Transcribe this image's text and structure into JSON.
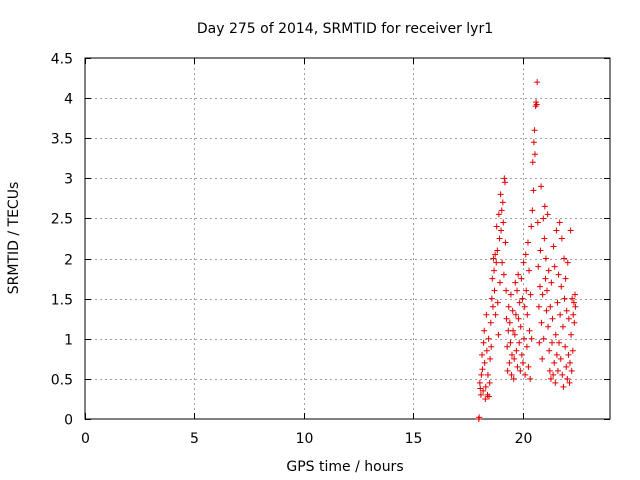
{
  "chart_data": {
    "type": "scatter",
    "title": "Day 275 of 2014, SRMTID for receiver lyr1",
    "xlabel": "GPS time / hours",
    "ylabel": "SRMTID / TECUs",
    "xlim": [
      0,
      24
    ],
    "ylim": [
      0,
      4.5
    ],
    "xticks": [
      0,
      5,
      10,
      15,
      20
    ],
    "xtick_labels": [
      "0",
      "5",
      "10",
      "15",
      "20"
    ],
    "yticks": [
      0,
      0.5,
      1,
      1.5,
      2,
      2.5,
      3,
      3.5,
      4,
      4.5
    ],
    "ytick_labels": [
      "0",
      "0.5",
      "1",
      "1.5",
      "2",
      "2.5",
      "3",
      "3.5",
      "4",
      "4.5"
    ],
    "grid": true,
    "marker": "+",
    "color": "#e00000",
    "series": [
      {
        "name": "SRMTID",
        "points": [
          [
            18.0,
            0.0
          ],
          [
            18.02,
            0.02
          ],
          [
            18.05,
            0.45
          ],
          [
            18.07,
            0.38
          ],
          [
            18.1,
            0.3
          ],
          [
            18.12,
            0.55
          ],
          [
            18.15,
            0.8
          ],
          [
            18.17,
            0.62
          ],
          [
            18.2,
            0.35
          ],
          [
            18.22,
            0.95
          ],
          [
            18.25,
            1.1
          ],
          [
            18.27,
            0.7
          ],
          [
            18.3,
            0.25
          ],
          [
            18.32,
            0.4
          ],
          [
            18.35,
            1.3
          ],
          [
            18.37,
            0.85
          ],
          [
            18.4,
            0.3
          ],
          [
            18.42,
            0.55
          ],
          [
            18.45,
            1.0
          ],
          [
            18.47,
            0.28
          ],
          [
            18.5,
            0.45
          ],
          [
            18.52,
            0.75
          ],
          [
            18.55,
            1.2
          ],
          [
            18.57,
            0.9
          ],
          [
            18.6,
            1.5
          ],
          [
            18.62,
            1.75
          ],
          [
            18.65,
            1.4
          ],
          [
            18.67,
            2.0
          ],
          [
            18.7,
            1.85
          ],
          [
            18.72,
            1.6
          ],
          [
            18.75,
            2.05
          ],
          [
            18.77,
            1.3
          ],
          [
            18.8,
            1.95
          ],
          [
            18.82,
            2.4
          ],
          [
            18.85,
            2.1
          ],
          [
            18.87,
            1.45
          ],
          [
            18.9,
            1.05
          ],
          [
            18.92,
            2.55
          ],
          [
            18.95,
            2.25
          ],
          [
            18.97,
            1.7
          ],
          [
            19.0,
            2.8
          ],
          [
            19.02,
            2.35
          ],
          [
            19.05,
            2.6
          ],
          [
            19.07,
            1.95
          ],
          [
            19.1,
            2.7
          ],
          [
            19.12,
            2.45
          ],
          [
            19.15,
            1.8
          ],
          [
            19.17,
            3.0
          ],
          [
            19.2,
            2.95
          ],
          [
            19.22,
            2.2
          ],
          [
            19.25,
            1.6
          ],
          [
            19.27,
            1.25
          ],
          [
            19.3,
            0.9
          ],
          [
            19.32,
            0.6
          ],
          [
            19.35,
            1.1
          ],
          [
            19.37,
            1.4
          ],
          [
            19.4,
            0.7
          ],
          [
            19.42,
            1.2
          ],
          [
            19.45,
            0.95
          ],
          [
            19.47,
            1.55
          ],
          [
            19.5,
            0.55
          ],
          [
            19.52,
            0.8
          ],
          [
            19.55,
            1.35
          ],
          [
            19.57,
            1.1
          ],
          [
            19.6,
            0.5
          ],
          [
            19.62,
            0.75
          ],
          [
            19.65,
            1.05
          ],
          [
            19.67,
            1.7
          ],
          [
            19.7,
            1.3
          ],
          [
            19.72,
            0.85
          ],
          [
            19.75,
            1.6
          ],
          [
            19.77,
            0.65
          ],
          [
            19.8,
            1.8
          ],
          [
            19.82,
            1.25
          ],
          [
            19.85,
            0.95
          ],
          [
            19.87,
            1.45
          ],
          [
            19.9,
            0.6
          ],
          [
            19.92,
            1.15
          ],
          [
            19.95,
            1.75
          ],
          [
            19.97,
            0.8
          ],
          [
            20.0,
            1.5
          ],
          [
            20.02,
            0.7
          ],
          [
            20.05,
            1.95
          ],
          [
            20.07,
            1.0
          ],
          [
            20.1,
            1.4
          ],
          [
            20.12,
            0.55
          ],
          [
            20.15,
            2.05
          ],
          [
            20.17,
            1.6
          ],
          [
            20.2,
            0.9
          ],
          [
            20.22,
            1.3
          ],
          [
            20.25,
            2.2
          ],
          [
            20.27,
            0.65
          ],
          [
            20.3,
            1.85
          ],
          [
            20.32,
            1.1
          ],
          [
            20.35,
            0.5
          ],
          [
            20.37,
            1.55
          ],
          [
            20.4,
            2.4
          ],
          [
            20.42,
            1.0
          ],
          [
            20.45,
            2.6
          ],
          [
            20.47,
            3.2
          ],
          [
            20.5,
            2.85
          ],
          [
            20.52,
            3.45
          ],
          [
            20.55,
            3.6
          ],
          [
            20.57,
            3.3
          ],
          [
            20.6,
            3.9
          ],
          [
            20.62,
            3.95
          ],
          [
            20.65,
            3.92
          ],
          [
            20.67,
            4.2
          ],
          [
            20.7,
            2.45
          ],
          [
            20.72,
            1.9
          ],
          [
            20.75,
            1.4
          ],
          [
            20.77,
            0.95
          ],
          [
            20.8,
            1.65
          ],
          [
            20.82,
            2.1
          ],
          [
            20.85,
            2.9
          ],
          [
            20.87,
            1.2
          ],
          [
            20.9,
            0.75
          ],
          [
            20.92,
            1.55
          ],
          [
            20.95,
            2.5
          ],
          [
            20.97,
            1.0
          ],
          [
            21.0,
            2.25
          ],
          [
            21.02,
            2.65
          ],
          [
            21.05,
            1.75
          ],
          [
            21.07,
            2.0
          ],
          [
            21.1,
            1.35
          ],
          [
            21.12,
            1.6
          ],
          [
            21.15,
            2.55
          ],
          [
            21.17,
            1.15
          ],
          [
            21.2,
            1.85
          ],
          [
            21.22,
            0.85
          ],
          [
            21.25,
            0.6
          ],
          [
            21.27,
            1.4
          ],
          [
            21.3,
            0.5
          ],
          [
            21.32,
            1.7
          ],
          [
            21.35,
            0.95
          ],
          [
            21.37,
            1.25
          ],
          [
            21.4,
            0.55
          ],
          [
            21.42,
            2.15
          ],
          [
            21.45,
            0.7
          ],
          [
            21.47,
            1.9
          ],
          [
            21.5,
            0.45
          ],
          [
            21.52,
            1.05
          ],
          [
            21.55,
            2.35
          ],
          [
            21.57,
            0.8
          ],
          [
            21.6,
            1.45
          ],
          [
            21.62,
            0.6
          ],
          [
            21.65,
            1.8
          ],
          [
            21.67,
            0.95
          ],
          [
            21.7,
            2.45
          ],
          [
            21.72,
            1.3
          ],
          [
            21.75,
            0.75
          ],
          [
            21.77,
            1.65
          ],
          [
            21.8,
            2.25
          ],
          [
            21.82,
            0.55
          ],
          [
            21.85,
            1.15
          ],
          [
            21.87,
            0.4
          ],
          [
            21.9,
            2.0
          ],
          [
            21.92,
            1.5
          ],
          [
            21.95,
            0.9
          ],
          [
            21.97,
            1.75
          ],
          [
            22.0,
            0.65
          ],
          [
            22.02,
            1.35
          ],
          [
            22.05,
            0.5
          ],
          [
            22.07,
            1.95
          ],
          [
            22.1,
            0.8
          ],
          [
            22.12,
            1.25
          ],
          [
            22.15,
            0.45
          ],
          [
            22.17,
            0.7
          ],
          [
            22.2,
            2.35
          ],
          [
            22.22,
            1.05
          ],
          [
            22.25,
            0.6
          ],
          [
            22.27,
            1.5
          ],
          [
            22.3,
            0.85
          ],
          [
            22.32,
            1.3
          ],
          [
            22.35,
            1.45
          ],
          [
            22.37,
            1.2
          ],
          [
            22.4,
            1.55
          ],
          [
            22.42,
            1.4
          ]
        ]
      }
    ]
  }
}
